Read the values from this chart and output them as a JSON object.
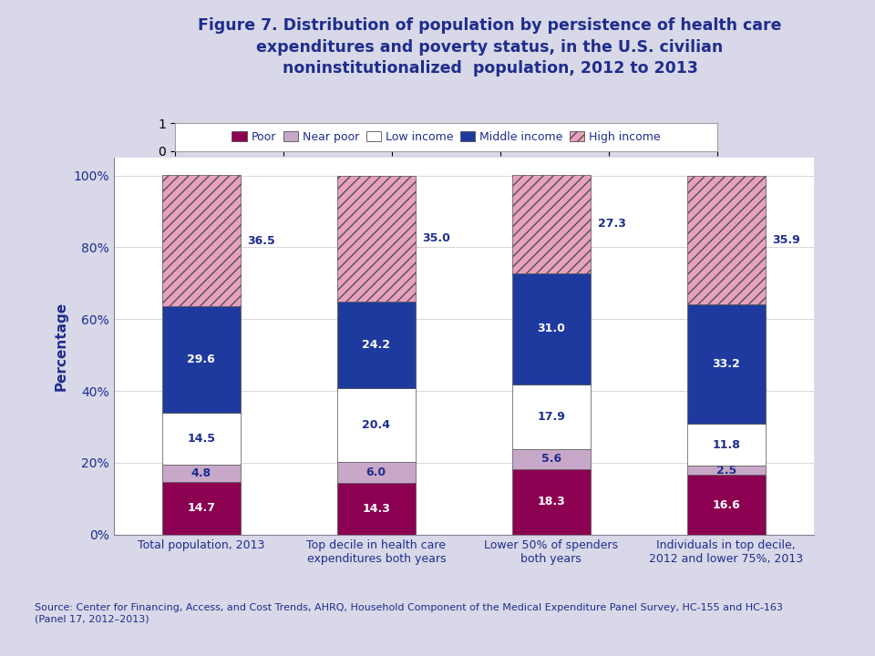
{
  "title": "Figure 7. Distribution of population by persistence of health care\nexpenditures and poverty status, in the U.S. civilian\nnoninstitutionalized  population, 2012 to 2013",
  "categories": [
    "Total population, 2013",
    "Top decile in health care\nexpenditures both years",
    "Lower 50% of spenders\nboth years",
    "Individuals in top decile,\n2012 and lower 75%, 2013"
  ],
  "series": {
    "Poor": [
      14.7,
      14.3,
      18.3,
      16.6
    ],
    "Near poor": [
      4.8,
      6.0,
      5.6,
      2.5
    ],
    "Low income": [
      14.5,
      20.4,
      17.9,
      11.8
    ],
    "Middle income": [
      29.6,
      24.2,
      31.0,
      33.2
    ],
    "High income": [
      36.5,
      35.0,
      27.3,
      35.9
    ]
  },
  "color_map": {
    "Poor": [
      "#8B0050",
      ""
    ],
    "Near poor": [
      "#C8A8C8",
      ""
    ],
    "Low income": [
      "#FFFFFF",
      ""
    ],
    "Middle income": [
      "#1F3A9E",
      ""
    ],
    "High income": [
      "#E8A0C0",
      "///"
    ]
  },
  "ylabel": "Percentage",
  "yticks": [
    0,
    20,
    40,
    60,
    80,
    100
  ],
  "ytick_labels": [
    "0%",
    "20%",
    "40%",
    "60%",
    "80%",
    "100%"
  ],
  "source_text": "Source: Center for Financing, Access, and Cost Trends, AHRQ, Household Component of the Medical Expenditure Panel Survey, HC-155 and HC-163\n(Panel 17, 2012–2013)",
  "title_color": "#1F2D8C",
  "label_color": "#1F2D8C",
  "bg_color": "#D8D8E8",
  "plot_bg_color": "#FFFFFF",
  "bar_width": 0.45,
  "legend_labels": [
    "Poor",
    "Near poor",
    "Low income",
    "Middle income",
    "High income"
  ],
  "value_labels_outside": {
    "Poor": false,
    "Near poor": false,
    "Low income": false,
    "Middle income": false,
    "High income": true
  },
  "outside_offset": {
    "0": 2.5,
    "1": 2.5,
    "2": 1.5,
    "3": 2.5
  }
}
